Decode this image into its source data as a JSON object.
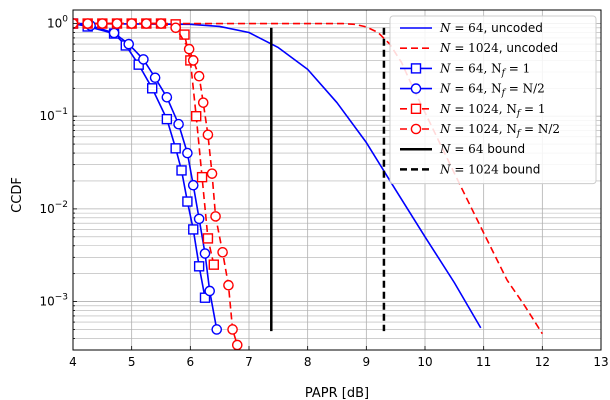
{
  "chart_data": {
    "type": "line",
    "xlabel": "PAPR [dB]",
    "ylabel": "CCDF",
    "xlim": [
      4,
      13
    ],
    "ylim": [
      0.0003,
      1.4
    ],
    "yscale": "log",
    "xticks": [
      "4",
      "5",
      "6",
      "7",
      "8",
      "9",
      "10",
      "11",
      "12",
      "13"
    ],
    "yticks": [
      {
        "value": 1,
        "mantissa": "10",
        "exp": "0"
      },
      {
        "value": 0.1,
        "mantissa": "10",
        "exp": "−1"
      },
      {
        "value": 0.01,
        "mantissa": "10",
        "exp": "−2"
      },
      {
        "value": 0.001,
        "mantissa": "10",
        "exp": "−3"
      }
    ],
    "grid": true,
    "legend_position": "top-right",
    "series": [
      {
        "name": "N = 64, uncoded",
        "color": "#0000ff",
        "dash": "solid",
        "marker": "none",
        "x": [
          4.0,
          6.0,
          6.5,
          7.0,
          7.5,
          8.0,
          8.5,
          9.0,
          9.5,
          10.0,
          10.5,
          10.95
        ],
        "y": [
          1.0,
          0.98,
          0.93,
          0.8,
          0.55,
          0.32,
          0.14,
          0.052,
          0.016,
          0.005,
          0.0016,
          0.00052
        ]
      },
      {
        "name": "N = 1024, uncoded",
        "color": "#ff0000",
        "dash": "dashed",
        "marker": "none",
        "x": [
          4.0,
          8.6,
          8.8,
          9.0,
          9.2,
          9.4,
          9.6,
          9.8,
          10.2,
          10.6,
          11.0,
          11.4,
          11.7,
          12.0
        ],
        "y": [
          1.0,
          1.0,
          0.98,
          0.92,
          0.8,
          0.6,
          0.38,
          0.2,
          0.06,
          0.018,
          0.0055,
          0.0017,
          0.0009,
          0.00045
        ]
      },
      {
        "name": "N = 64, N_f = 1",
        "color": "#0000ff",
        "dash": "solid",
        "marker": "square",
        "x": [
          4.0,
          4.25,
          4.7,
          4.9,
          5.12,
          5.35,
          5.6,
          5.75,
          5.85,
          5.95,
          6.05,
          6.15,
          6.25
        ],
        "y": [
          1.0,
          0.93,
          0.78,
          0.58,
          0.36,
          0.2,
          0.093,
          0.045,
          0.026,
          0.012,
          0.006,
          0.0024,
          0.0011
        ]
      },
      {
        "name": "N = 64, N_f = N/2",
        "color": "#0000ff",
        "dash": "solid",
        "marker": "circle",
        "x": [
          4.0,
          4.3,
          4.7,
          4.95,
          5.2,
          5.4,
          5.6,
          5.8,
          5.95,
          6.05,
          6.15,
          6.25,
          6.33,
          6.45
        ],
        "y": [
          1.0,
          0.95,
          0.79,
          0.6,
          0.41,
          0.26,
          0.16,
          0.082,
          0.04,
          0.018,
          0.0078,
          0.0033,
          0.0013,
          0.0005
        ]
      },
      {
        "name": "N = 1024, N_f = 1",
        "color": "#ff0000",
        "dash": "dashed",
        "marker": "square",
        "x": [
          4.0,
          4.25,
          4.5,
          4.75,
          5.0,
          5.25,
          5.5,
          5.75,
          5.9,
          6.0,
          6.1,
          6.2,
          6.3,
          6.4
        ],
        "y": [
          1.0,
          1.0,
          1.0,
          1.0,
          1.0,
          1.0,
          1.0,
          0.98,
          0.76,
          0.4,
          0.1,
          0.022,
          0.0048,
          0.0025
        ]
      },
      {
        "name": "N = 1024, N_f = N/2",
        "color": "#ff0000",
        "dash": "dashed",
        "marker": "circle",
        "x": [
          4.0,
          4.25,
          4.5,
          4.75,
          5.0,
          5.25,
          5.5,
          5.75,
          5.98,
          6.05,
          6.15,
          6.22,
          6.3,
          6.37,
          6.43,
          6.55,
          6.65,
          6.72,
          6.8
        ],
        "y": [
          1.0,
          1.0,
          1.0,
          1.0,
          1.0,
          1.0,
          1.0,
          0.9,
          0.53,
          0.4,
          0.27,
          0.14,
          0.063,
          0.024,
          0.0083,
          0.0034,
          0.0015,
          0.0005,
          0.00034
        ]
      },
      {
        "name": "N = 64 bound",
        "color": "#000000",
        "dash": "solid",
        "marker": "none",
        "width": 2.5,
        "x": [
          7.38,
          7.38
        ],
        "y": [
          0.9,
          0.00048
        ]
      },
      {
        "name": "N = 1024 bound",
        "color": "#000000",
        "dash": "dashed",
        "marker": "none",
        "width": 2.5,
        "x": [
          9.3,
          9.3
        ],
        "y": [
          0.9,
          0.00048
        ]
      }
    ],
    "legend": [
      {
        "sym": "N",
        "eq": " = 64",
        "sub": "",
        "sub2": "",
        "tail": ", uncoded"
      },
      {
        "sym": "N",
        "eq": " = 1024",
        "sub": "",
        "sub2": "",
        "tail": ", uncoded"
      },
      {
        "sym": "N",
        "eq": " = 64, N",
        "sub": "f",
        "sub2": " = 1",
        "tail": ""
      },
      {
        "sym": "N",
        "eq": " = 64, N",
        "sub": "f",
        "sub2": " = N/2",
        "tail": ""
      },
      {
        "sym": "N",
        "eq": " = 1024, N",
        "sub": "f",
        "sub2": " = 1",
        "tail": ""
      },
      {
        "sym": "N",
        "eq": " = 1024, N",
        "sub": "f",
        "sub2": " = N/2",
        "tail": ""
      },
      {
        "sym": "N",
        "eq": " = 64",
        "sub": "",
        "sub2": "",
        "tail": " bound"
      },
      {
        "sym": "N",
        "eq": " = 1024",
        "sub": "",
        "sub2": "",
        "tail": " bound"
      }
    ]
  }
}
